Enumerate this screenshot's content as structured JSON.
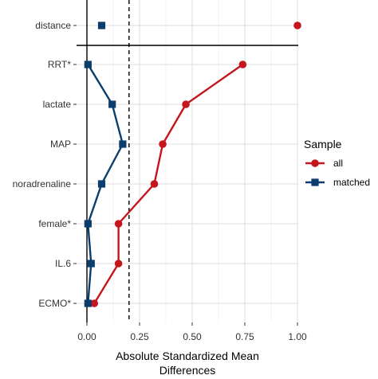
{
  "chart_data": {
    "type": "scatter",
    "xlabel": "Absolute Standardized Mean Differences",
    "xlim": [
      0,
      1
    ],
    "x_ticks": [
      "0.00",
      "0.25",
      "0.50",
      "0.75",
      "1.00"
    ],
    "x_tick_values": [
      0,
      0.25,
      0.5,
      0.75,
      1.0
    ],
    "threshold": 0.2,
    "categories_top_to_bottom": [
      "distance",
      "RRT*",
      "lactate",
      "MAP",
      "noradrenaline",
      "female*",
      "IL.6",
      "ECMO*"
    ],
    "series": [
      {
        "name": "all",
        "color": "#c4161c",
        "marker": "circle",
        "values": [
          1.0,
          0.74,
          0.47,
          0.36,
          0.32,
          0.15,
          0.15,
          0.035
        ]
      },
      {
        "name": "matched",
        "color": "#0b3d6e",
        "marker": "square",
        "values": [
          0.07,
          0.005,
          0.12,
          0.17,
          0.07,
          0.005,
          0.02,
          0.005
        ]
      }
    ],
    "grid": true,
    "legend": {
      "title": "Sample",
      "placement": "right"
    }
  }
}
